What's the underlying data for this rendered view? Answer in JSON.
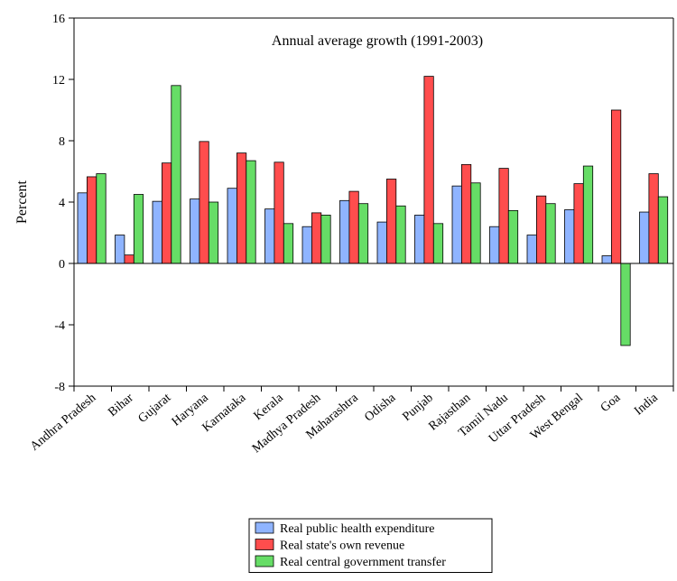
{
  "chart_data": {
    "type": "bar",
    "title": "Annual average growth (1991-2003)",
    "xlabel": "",
    "ylabel": "Percent",
    "ylim": [
      -8,
      16
    ],
    "yticks": [
      "16",
      "12",
      "8",
      "4",
      "0",
      "-4",
      "-8"
    ],
    "grid": false,
    "legend_position": "bottom-center",
    "categories": [
      "Andhra Pradesh",
      "Bihar",
      "Gujarat",
      "Haryana",
      "Karnataka",
      "Kerala",
      "Madhya Pradesh",
      "Maharashtra",
      "Odisha",
      "Punjab",
      "Rajasthan",
      "Tamil Nadu",
      "Uttar Pradesh",
      "West Bengal",
      "Goa",
      "India"
    ],
    "series": [
      {
        "name": "Real public health expenditure",
        "color": "#8fb4ff",
        "values": [
          4.6,
          1.85,
          4.05,
          4.2,
          4.9,
          3.55,
          2.4,
          4.1,
          2.7,
          3.15,
          5.05,
          2.4,
          1.85,
          3.5,
          0.5,
          3.35
        ]
      },
      {
        "name": "Real state's own revenue",
        "color": "#ff4d4d",
        "values": [
          5.65,
          0.55,
          6.55,
          7.95,
          7.2,
          6.6,
          3.3,
          4.7,
          5.5,
          12.2,
          6.45,
          6.2,
          4.4,
          5.2,
          10.0,
          5.85
        ]
      },
      {
        "name": "Real central government transfer",
        "color": "#66dd66",
        "values": [
          5.85,
          4.5,
          11.6,
          4.0,
          6.7,
          2.6,
          3.15,
          3.9,
          3.75,
          2.6,
          5.25,
          3.45,
          3.9,
          6.35,
          -5.35,
          4.35
        ]
      }
    ]
  }
}
